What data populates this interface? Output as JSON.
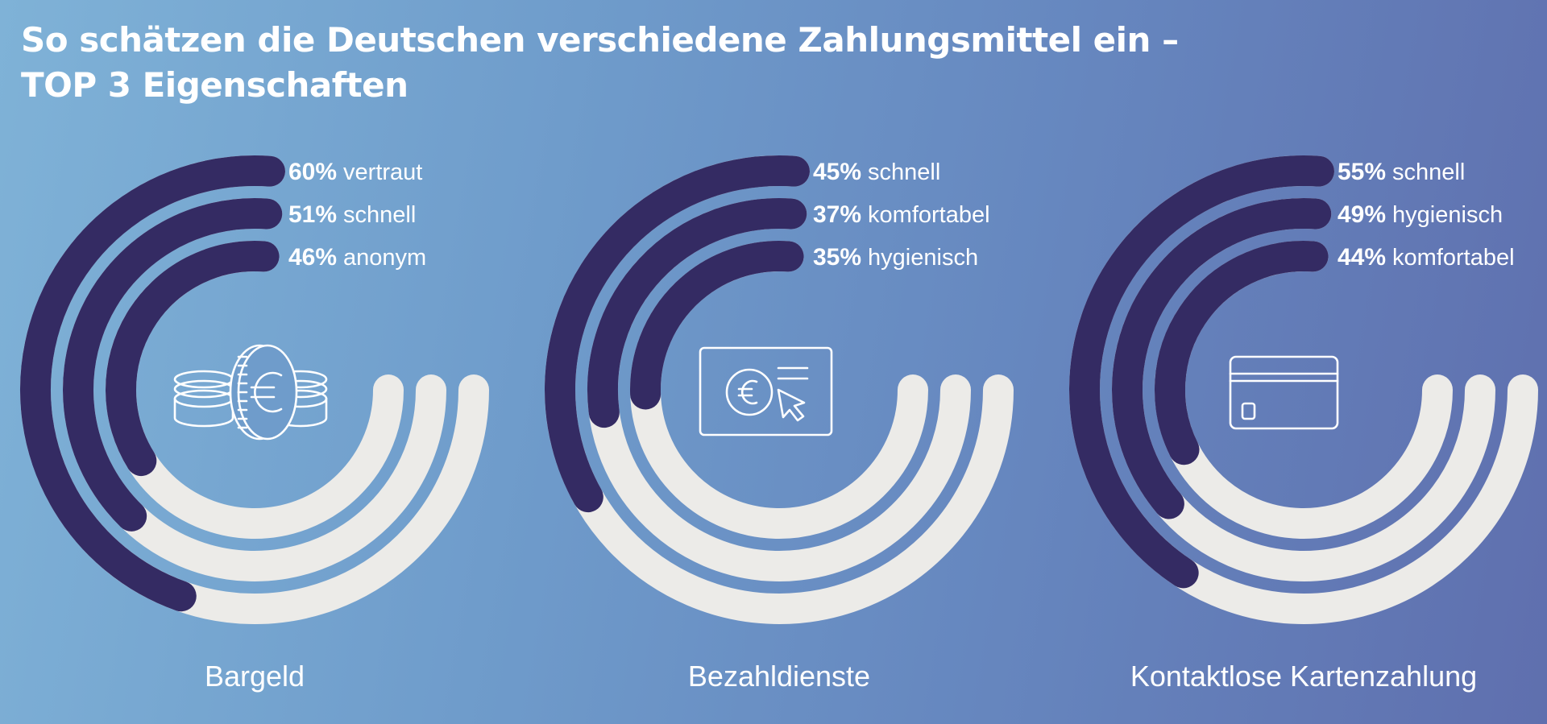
{
  "title": {
    "line1": "So schätzen die Deutschen verschiedene Zahlungsmittel ein –",
    "line2": "TOP 3 Eigenschaften"
  },
  "colors": {
    "arc_filled": "#342b63",
    "arc_track": "#ecebe8",
    "text": "#ffffff",
    "background_start": "#7fb2d7",
    "background_end": "#5f6fae"
  },
  "chart_data": [
    {
      "type": "radial-bar",
      "category": "Bargeld",
      "icon": "coins-euro-icon",
      "series": [
        {
          "value": 60,
          "value_label": "60%",
          "attribute": "vertraut"
        },
        {
          "value": 51,
          "value_label": "51%",
          "attribute": "schnell"
        },
        {
          "value": 46,
          "value_label": "46%",
          "attribute": "anonym"
        }
      ]
    },
    {
      "type": "radial-bar",
      "category": "Bezahldienste",
      "icon": "online-payment-euro-icon",
      "series": [
        {
          "value": 45,
          "value_label": "45%",
          "attribute": "schnell"
        },
        {
          "value": 37,
          "value_label": "37%",
          "attribute": "komfortabel"
        },
        {
          "value": 35,
          "value_label": "35%",
          "attribute": "hygienisch"
        }
      ]
    },
    {
      "type": "radial-bar",
      "category": "Kontaktlose Kartenzahlung",
      "icon": "credit-card-icon",
      "series": [
        {
          "value": 55,
          "value_label": "55%",
          "attribute": "schnell"
        },
        {
          "value": 49,
          "value_label": "49%",
          "attribute": "hygienisch"
        },
        {
          "value": 44,
          "value_label": "44%",
          "attribute": "komfortabel"
        }
      ]
    }
  ]
}
